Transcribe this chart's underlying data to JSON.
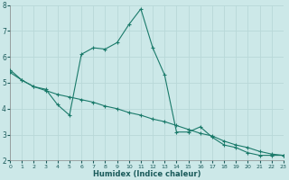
{
  "title": "",
  "xlabel": "Humidex (Indice chaleur)",
  "background_color": "#cce8e8",
  "line_color": "#1a7a6a",
  "grid_color": "#b8d8d8",
  "x_line1": [
    0,
    1,
    2,
    3,
    4,
    5,
    6,
    7,
    8,
    9,
    10,
    11,
    12,
    13,
    14,
    15,
    16,
    17,
    18,
    19,
    20,
    21,
    22,
    23
  ],
  "y_line1": [
    5.5,
    5.1,
    4.85,
    4.75,
    4.15,
    3.75,
    6.1,
    6.35,
    6.3,
    6.55,
    7.25,
    7.85,
    6.35,
    5.3,
    3.1,
    3.1,
    3.3,
    2.9,
    2.6,
    2.5,
    2.3,
    2.2,
    2.2,
    2.2
  ],
  "x_line2": [
    0,
    1,
    2,
    3,
    4,
    5,
    6,
    7,
    8,
    9,
    10,
    11,
    12,
    13,
    14,
    15,
    16,
    17,
    18,
    19,
    20,
    21,
    22,
    23
  ],
  "y_line2": [
    5.4,
    5.1,
    4.85,
    4.7,
    4.55,
    4.45,
    4.35,
    4.25,
    4.1,
    4.0,
    3.85,
    3.75,
    3.6,
    3.5,
    3.35,
    3.2,
    3.05,
    2.95,
    2.75,
    2.6,
    2.5,
    2.35,
    2.25,
    2.2
  ],
  "ylim": [
    2,
    8
  ],
  "xlim": [
    0,
    23
  ],
  "yticks": [
    2,
    3,
    4,
    5,
    6,
    7,
    8
  ],
  "xticks": [
    0,
    1,
    2,
    3,
    4,
    5,
    6,
    7,
    8,
    9,
    10,
    11,
    12,
    13,
    14,
    15,
    16,
    17,
    18,
    19,
    20,
    21,
    22,
    23
  ]
}
